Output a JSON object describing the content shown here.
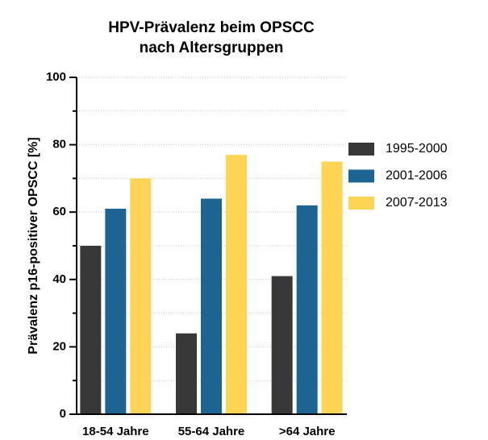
{
  "chart_data": {
    "type": "bar",
    "title": [
      "HPV-Prävalenz beim OPSCC",
      "nach Altersgruppen"
    ],
    "ylabel": "Prävalenz p16-positiver OPSCC [%]",
    "categories": [
      "18-54 Jahre",
      "55-64 Jahre",
      ">64 Jahre"
    ],
    "series": [
      {
        "name": "1995-2000",
        "color": "#383838",
        "values": [
          50,
          24,
          41
        ]
      },
      {
        "name": "2001-2006",
        "color": "#1d6493",
        "values": [
          61,
          64,
          62
        ]
      },
      {
        "name": "2007-2013",
        "color": "#fdd454",
        "values": [
          70,
          77,
          75
        ]
      }
    ],
    "ylim": [
      0,
      100
    ],
    "yticks": [
      0,
      20,
      40,
      60,
      80,
      100
    ],
    "yminorticks": [
      10,
      30,
      50,
      70,
      90
    ],
    "grid": true,
    "legend": "right"
  }
}
